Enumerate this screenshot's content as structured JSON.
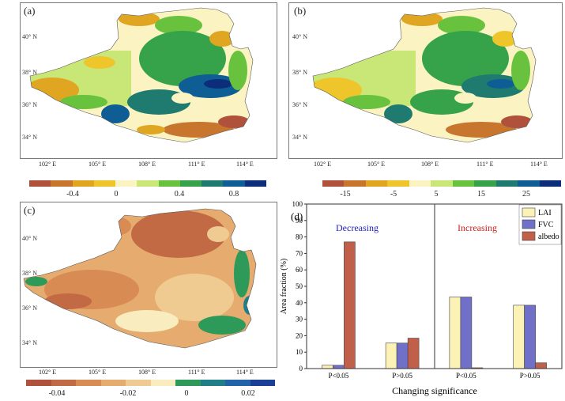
{
  "panels": {
    "a": {
      "label": "(a)",
      "lat_ticks": [
        "40° N",
        "38° N",
        "36° N",
        "34° N"
      ],
      "lon_ticks": [
        "102° E",
        "105° E",
        "108° E",
        "111° E",
        "114° E"
      ],
      "colorbar": {
        "colors": [
          "#b0523b",
          "#c8762e",
          "#e0a521",
          "#eec62c",
          "#fbf4c2",
          "#c9e777",
          "#69c23d",
          "#36a34b",
          "#1f7a6f",
          "#0f5d95",
          "#0c2e7a"
        ],
        "labels": [
          "-0.4",
          "0",
          "0.4",
          "0.8"
        ]
      }
    },
    "b": {
      "label": "(b)",
      "lat_ticks": [
        "40° N",
        "38° N",
        "36° N",
        "34° N"
      ],
      "lon_ticks": [
        "102° E",
        "105° E",
        "108° E",
        "111° E",
        "114° E"
      ],
      "colorbar": {
        "colors": [
          "#b0523b",
          "#c8762e",
          "#e0a521",
          "#eec62c",
          "#fbf4c2",
          "#c9e777",
          "#69c23d",
          "#36a34b",
          "#1f7a6f",
          "#0f5d95",
          "#0c2e7a"
        ],
        "labels": [
          "-15",
          "-5",
          "5",
          "15",
          "25"
        ]
      }
    },
    "c": {
      "label": "(c)",
      "lat_ticks": [
        "40° N",
        "38° N",
        "36° N",
        "34° N"
      ],
      "lon_ticks": [
        "102° E",
        "105° E",
        "108° E",
        "111° E",
        "114° E"
      ],
      "colorbar": {
        "colors": [
          "#b0523b",
          "#c26a43",
          "#d88b52",
          "#e6ab6e",
          "#f0cb91",
          "#f9edc0",
          "#2e9a5a",
          "#1f7f88",
          "#2262a8",
          "#1b3f96"
        ],
        "labels": [
          "-0.04",
          "-0.02",
          "0",
          "0.02"
        ]
      }
    }
  },
  "chart_data": {
    "type": "bar",
    "panel_label": "(d)",
    "categories": [
      "P<0.05",
      "P>0.05",
      "P<0.05",
      "P>0.05"
    ],
    "series": [
      {
        "name": "LAI",
        "color": "#fcf2b6",
        "values": [
          2,
          15.5,
          43.5,
          38.5
        ]
      },
      {
        "name": "FVC",
        "color": "#7070c8",
        "values": [
          2,
          15.5,
          43.5,
          38.5
        ]
      },
      {
        "name": "albedo",
        "color": "#c0604a",
        "values": [
          77,
          18.5,
          0.5,
          3.5
        ]
      }
    ],
    "ylim": [
      0,
      100
    ],
    "yticks": [
      0,
      10,
      20,
      30,
      40,
      50,
      60,
      70,
      80,
      90,
      100
    ],
    "ylabel": "Area fraction (%)",
    "xlabel": "Changing significance",
    "group_labels": [
      {
        "text": "Decreasing",
        "color": "#2222bb"
      },
      {
        "text": "Increasing",
        "color": "#cc2222"
      }
    ],
    "legend_position": "top-right"
  }
}
